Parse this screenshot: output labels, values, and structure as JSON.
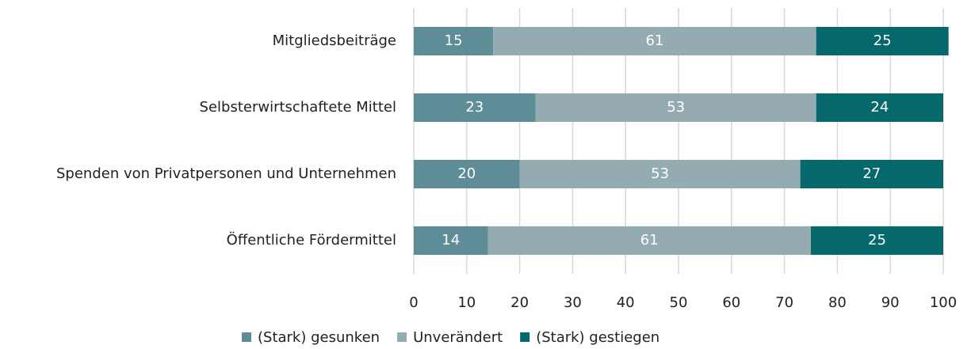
{
  "chart_data": {
    "type": "stacked_bar_horizontal",
    "categories": [
      "Mitgliedsbeiträge",
      "Selbsterwirtschaftete Mittel",
      "Spenden von Privatpersonen und Unternehmen",
      "Öffentliche Fördermittel"
    ],
    "series": [
      {
        "name": "(Stark) gesunken",
        "color": "#5e8d97",
        "values": [
          15,
          23,
          20,
          14
        ]
      },
      {
        "name": "Unverändert",
        "color": "#94abb2",
        "values": [
          61,
          53,
          53,
          61
        ]
      },
      {
        "name": "(Stark) gestiegen",
        "color": "#04686c",
        "values": [
          25,
          24,
          27,
          25
        ]
      }
    ],
    "xlim": [
      0,
      100
    ],
    "xticks": [
      0,
      10,
      20,
      30,
      40,
      50,
      60,
      70,
      80,
      90,
      100
    ],
    "grid": true,
    "legend": "bottom"
  }
}
